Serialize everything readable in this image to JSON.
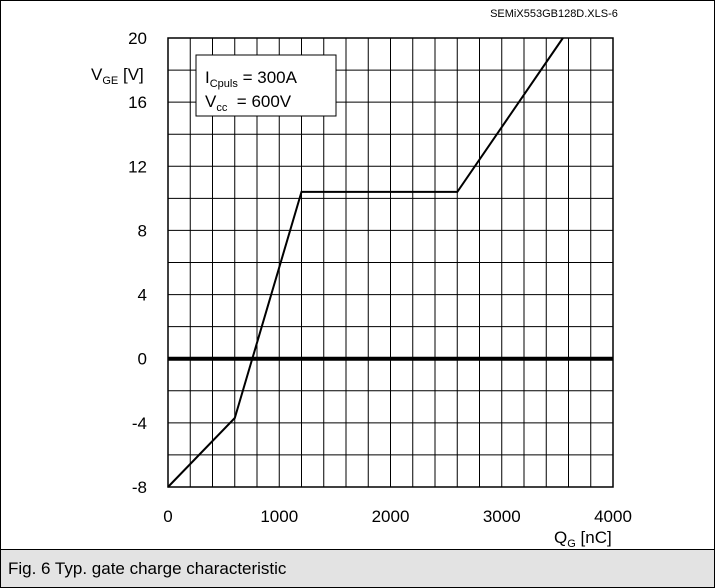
{
  "file_label": "SEMiX553GB128D.XLS-6",
  "caption": "Fig. 6 Typ. gate charge characteristic",
  "legend": {
    "line1_main": "I",
    "line1_sub": "Cpuls",
    "line1_value": " = 300A",
    "line2_main": "V",
    "line2_sub": "cc",
    "line2_value": "  = 600V"
  },
  "axes": {
    "y_label_main": "V",
    "y_label_sub": "GE",
    "y_label_unit": " [V]",
    "x_label_main": "Q",
    "x_label_sub": "G",
    "x_label_unit": " [nC]"
  },
  "chart_data": {
    "type": "line",
    "title": "",
    "xlabel": "QG [nC]",
    "ylabel": "VGE [V]",
    "xlim": [
      0,
      4000
    ],
    "ylim": [
      -8,
      20
    ],
    "x_ticks": [
      0,
      1000,
      2000,
      3000,
      4000
    ],
    "y_ticks": [
      -8,
      -4,
      0,
      4,
      8,
      12,
      16,
      20
    ],
    "x_minor_step": 200,
    "y_minor_step": 2,
    "grid": true,
    "zero_line": true,
    "series": [
      {
        "x": [
          0,
          600,
          1200,
          2600,
          3550
        ],
        "y": [
          -8,
          -3.7,
          10.4,
          10.4,
          20
        ]
      }
    ]
  }
}
